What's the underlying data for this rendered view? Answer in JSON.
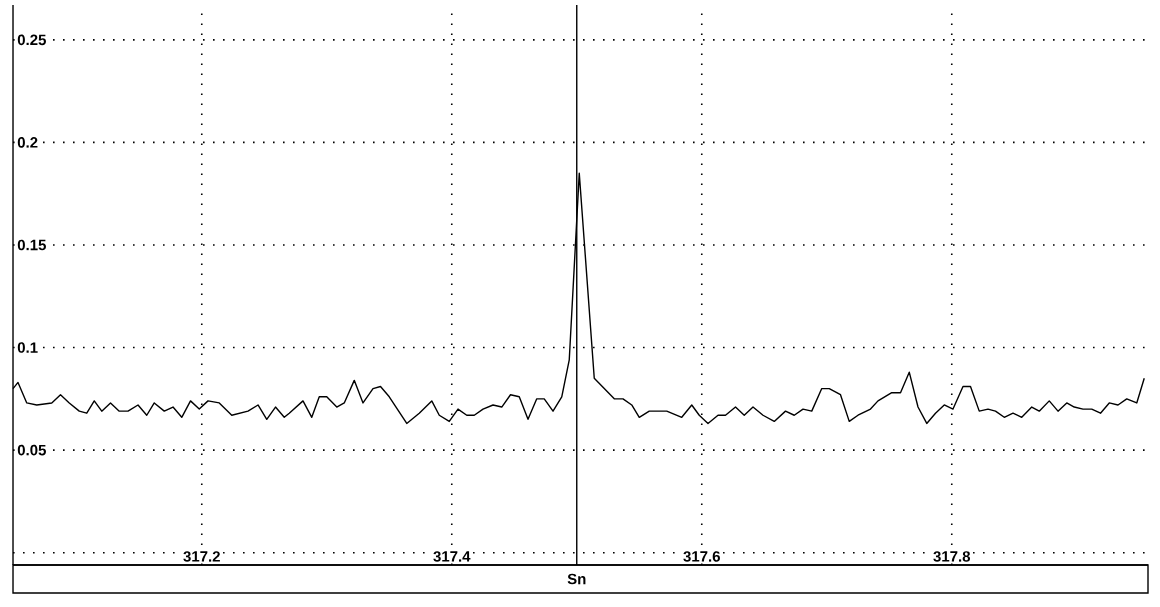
{
  "chart_data": {
    "type": "line",
    "x": [
      317.049,
      317.053,
      317.06,
      317.068,
      317.08,
      317.087,
      317.094,
      317.102,
      317.108,
      317.114,
      317.12,
      317.127,
      317.134,
      317.141,
      317.149,
      317.156,
      317.162,
      317.17,
      317.177,
      317.184,
      317.191,
      317.198,
      317.205,
      317.214,
      317.224,
      317.237,
      317.245,
      317.252,
      317.259,
      317.266,
      317.27,
      317.281,
      317.288,
      317.294,
      317.3,
      317.308,
      317.314,
      317.322,
      317.329,
      317.337,
      317.343,
      317.35,
      317.364,
      317.374,
      317.384,
      317.39,
      317.398,
      317.405,
      317.412,
      317.418,
      317.425,
      317.433,
      317.44,
      317.447,
      317.454,
      317.461,
      317.468,
      317.474,
      317.481,
      317.488,
      317.494,
      317.502,
      317.514,
      317.53,
      317.537,
      317.544,
      317.55,
      317.558,
      317.572,
      317.584,
      317.592,
      317.598,
      317.605,
      317.613,
      317.619,
      317.627,
      317.634,
      317.641,
      317.649,
      317.658,
      317.667,
      317.674,
      317.681,
      317.688,
      317.696,
      317.702,
      317.711,
      317.718,
      317.725,
      317.735,
      317.741,
      317.752,
      317.759,
      317.766,
      317.773,
      317.78,
      317.787,
      317.794,
      317.801,
      317.809,
      317.815,
      317.822,
      317.829,
      317.835,
      317.842,
      317.849,
      317.856,
      317.864,
      317.87,
      317.878,
      317.885,
      317.892,
      317.898,
      317.905,
      317.912,
      317.919,
      317.926,
      317.933,
      317.94,
      317.948,
      317.954
    ],
    "series": [
      {
        "color": "#000000",
        "values": [
          0.08,
          0.083,
          0.073,
          0.072,
          0.073,
          0.077,
          0.073,
          0.069,
          0.068,
          0.074,
          0.069,
          0.073,
          0.069,
          0.069,
          0.072,
          0.067,
          0.073,
          0.069,
          0.071,
          0.066,
          0.074,
          0.07,
          0.074,
          0.073,
          0.067,
          0.069,
          0.072,
          0.065,
          0.071,
          0.066,
          0.068,
          0.074,
          0.066,
          0.076,
          0.076,
          0.071,
          0.073,
          0.084,
          0.073,
          0.08,
          0.081,
          0.076,
          0.063,
          0.068,
          0.074,
          0.067,
          0.064,
          0.07,
          0.067,
          0.067,
          0.07,
          0.072,
          0.071,
          0.077,
          0.076,
          0.065,
          0.075,
          0.075,
          0.069,
          0.076,
          0.094,
          0.185,
          0.085,
          0.075,
          0.075,
          0.072,
          0.066,
          0.069,
          0.069,
          0.066,
          0.072,
          0.067,
          0.063,
          0.067,
          0.067,
          0.071,
          0.067,
          0.071,
          0.067,
          0.064,
          0.069,
          0.067,
          0.07,
          0.069,
          0.08,
          0.08,
          0.077,
          0.064,
          0.067,
          0.07,
          0.074,
          0.078,
          0.078,
          0.088,
          0.071,
          0.063,
          0.068,
          0.072,
          0.07,
          0.081,
          0.081,
          0.069,
          0.07,
          0.069,
          0.066,
          0.068,
          0.066,
          0.071,
          0.069,
          0.074,
          0.069,
          0.073,
          0.071,
          0.07,
          0.07,
          0.068,
          0.073,
          0.072,
          0.075,
          0.073,
          0.085
        ]
      }
    ],
    "xlim": [
      317.049,
      317.957
    ],
    "ylim": [
      -0.006,
      0.267
    ],
    "xticks": [
      317.2,
      317.4,
      317.6,
      317.8
    ],
    "yticks": [
      {
        "value": 0,
        "label": null
      },
      0.05,
      0.1,
      0.15,
      0.2,
      0.25
    ],
    "grid": true,
    "line_style": "solid",
    "ref_lines": [
      {
        "axis": "x",
        "value": 317.5,
        "label": "Sn",
        "color": "#000000"
      }
    ]
  }
}
